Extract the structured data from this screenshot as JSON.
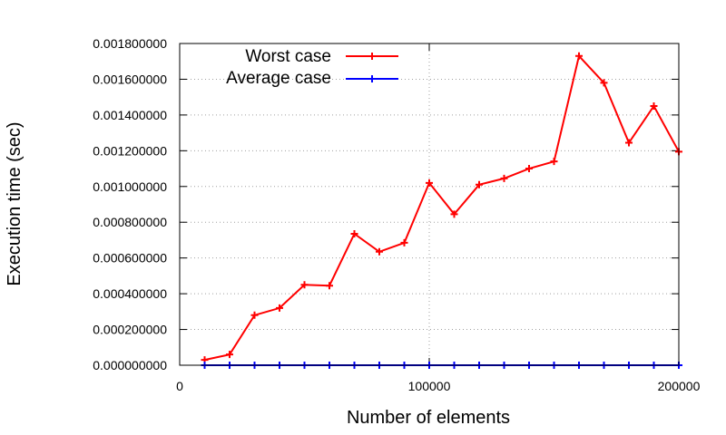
{
  "chart_data": {
    "type": "line",
    "xlabel": "Number of elements",
    "ylabel": "Execution time (sec)",
    "xlim": [
      0,
      200000
    ],
    "ylim": [
      0,
      0.0018
    ],
    "x_ticks": [
      0,
      100000,
      200000
    ],
    "x_tick_labels": [
      "0",
      "100000",
      "200000"
    ],
    "y_ticks": [
      0,
      0.0002,
      0.0004,
      0.0006,
      0.0008,
      0.001,
      0.0012,
      0.0014,
      0.0016,
      0.0018
    ],
    "y_tick_labels": [
      "0.000000000",
      "0.000200000",
      "0.000400000",
      "0.000600000",
      "0.000800000",
      "0.001000000",
      "0.001200000",
      "0.001400000",
      "0.001600000",
      "0.001800000"
    ],
    "grid": true,
    "legend_position": "top-left",
    "x": [
      10000,
      20000,
      30000,
      40000,
      50000,
      60000,
      70000,
      80000,
      90000,
      100000,
      110000,
      120000,
      130000,
      140000,
      150000,
      160000,
      170000,
      180000,
      190000,
      200000
    ],
    "series": [
      {
        "name": "Worst case",
        "color": "#ff0000",
        "values": [
          3e-05,
          6e-05,
          0.00028,
          0.00032,
          0.00045,
          0.000445,
          0.000735,
          0.000635,
          0.000685,
          0.00102,
          0.000845,
          0.00101,
          0.001045,
          0.0011,
          0.00114,
          0.00173,
          0.00158,
          0.001245,
          0.00145,
          0.001195
        ]
      },
      {
        "name": "Average case",
        "color": "#0000ff",
        "values": [
          0,
          0,
          0,
          0,
          0,
          0,
          0,
          0,
          0,
          0,
          0,
          0,
          0,
          0,
          0,
          0,
          0,
          0,
          0,
          0
        ]
      }
    ]
  }
}
